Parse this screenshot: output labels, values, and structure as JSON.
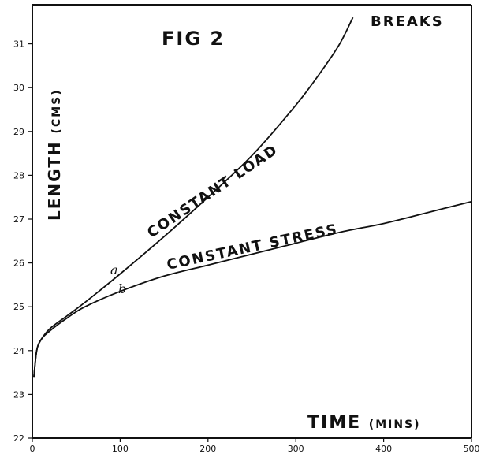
{
  "chart_data": {
    "type": "line",
    "title": "FIG 2",
    "ylabel_main": "LENGTH",
    "ylabel_unit": "(CMS)",
    "xlabel_main": "TIME",
    "xlabel_unit": "(MINS)",
    "xlim": [
      0,
      500
    ],
    "ylim": [
      22,
      31.5
    ],
    "x_ticks": [
      0,
      100,
      200,
      300,
      400,
      500
    ],
    "y_ticks": [
      22,
      23,
      24,
      25,
      26,
      27,
      28,
      29,
      30,
      31
    ],
    "grid": false,
    "series": [
      {
        "name": "CONSTANT LOAD",
        "marker": "a",
        "end_label": "BREAKS",
        "x": [
          0,
          5,
          10,
          20,
          40,
          60,
          100,
          150,
          200,
          250,
          300,
          330,
          350,
          365
        ],
        "y": [
          23.4,
          24.0,
          24.25,
          24.5,
          24.8,
          25.1,
          25.75,
          26.6,
          27.5,
          28.45,
          29.6,
          30.4,
          31.0,
          31.6
        ]
      },
      {
        "name": "CONSTANT STRESS",
        "marker": "b",
        "x": [
          0,
          5,
          10,
          20,
          40,
          60,
          100,
          150,
          200,
          250,
          300,
          350,
          400,
          450,
          500
        ],
        "y": [
          23.4,
          24.0,
          24.25,
          24.45,
          24.75,
          25.0,
          25.35,
          25.7,
          25.95,
          26.2,
          26.45,
          26.7,
          26.9,
          27.15,
          27.4
        ]
      }
    ]
  }
}
